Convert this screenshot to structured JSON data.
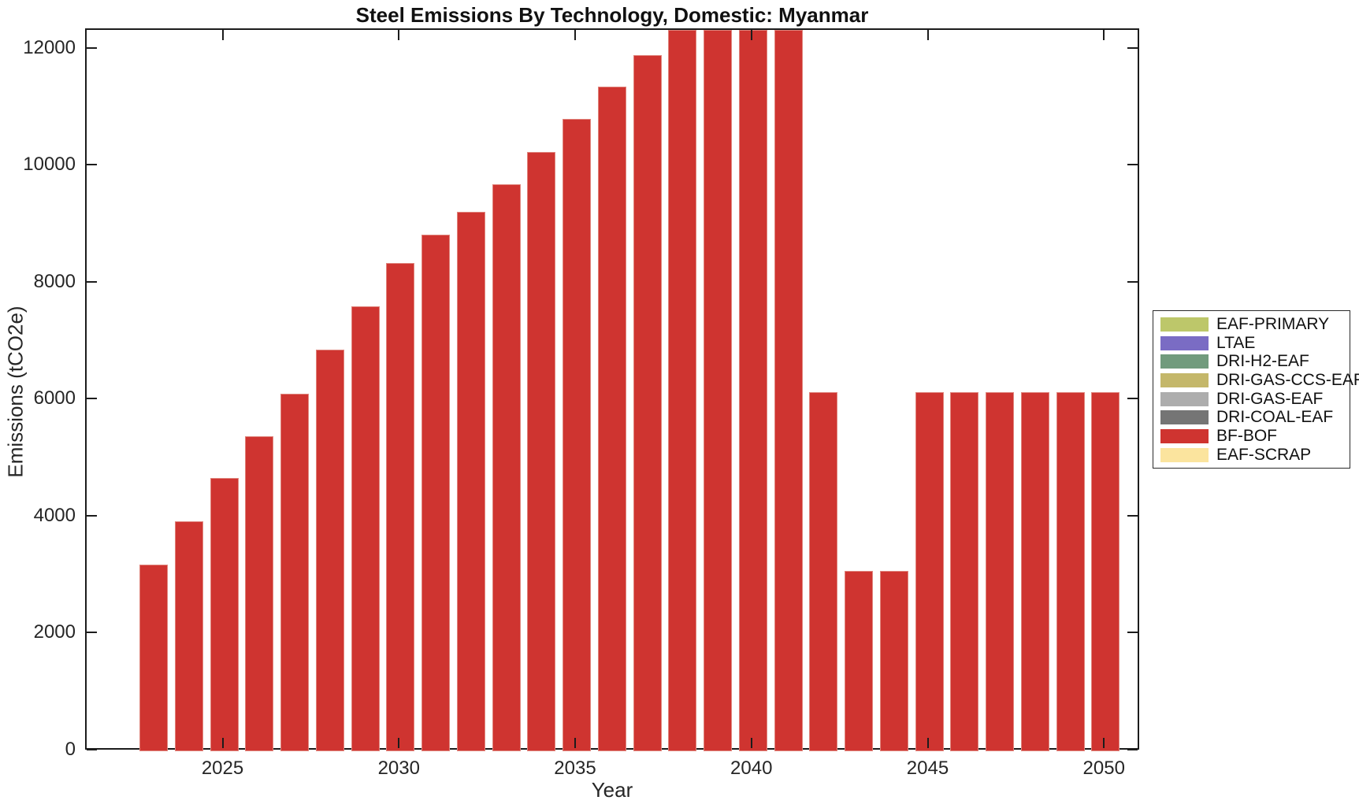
{
  "title": "Steel Emissions By Technology, Domestic: Myanmar",
  "axes": {
    "xlabel": "Year",
    "ylabel": "Emissions (tCO2e)",
    "x_tick_labels": [
      "2025",
      "2030",
      "2035",
      "2040",
      "2045",
      "2050"
    ],
    "y_tick_labels": [
      "0",
      "2000",
      "4000",
      "6000",
      "8000",
      "10000",
      "12000"
    ]
  },
  "legend": {
    "entries": [
      {
        "label": "EAF-PRIMARY",
        "color": "#bdc76a"
      },
      {
        "label": "LTAE",
        "color": "#7a6cc4"
      },
      {
        "label": "DRI-H2-EAF",
        "color": "#719b7d"
      },
      {
        "label": "DRI-GAS-CCS-EAF",
        "color": "#c4b76a"
      },
      {
        "label": "DRI-GAS-EAF",
        "color": "#adadad"
      },
      {
        "label": "DRI-COAL-EAF",
        "color": "#757575"
      },
      {
        "label": "BF-BOF",
        "color": "#cf3430"
      },
      {
        "label": "EAF-SCRAP",
        "color": "#fbe49e"
      }
    ]
  },
  "chart_data": {
    "type": "bar",
    "title": "Steel Emissions By Technology, Domestic: Myanmar",
    "xlabel": "Year",
    "ylabel": "Emissions (tCO2e)",
    "x": [
      2023,
      2024,
      2025,
      2026,
      2027,
      2028,
      2029,
      2030,
      2031,
      2032,
      2033,
      2034,
      2035,
      2036,
      2037,
      2038,
      2039,
      2040,
      2041,
      2042,
      2043,
      2044,
      2045,
      2046,
      2047,
      2048,
      2049,
      2050
    ],
    "series": [
      {
        "name": "BF-BOF",
        "color": "#cf3430",
        "values": [
          3190,
          3930,
          4670,
          5390,
          6110,
          6870,
          7610,
          8350,
          8830,
          9230,
          9690,
          10250,
          10820,
          11370,
          11910,
          12700,
          12700,
          12700,
          12700,
          6140,
          3080,
          3080,
          6140,
          6140,
          6140,
          6140,
          6140,
          6140
        ]
      }
    ],
    "clipped_years": [
      2038,
      2039,
      2040,
      2041
    ],
    "clipped_note": "Bars for 2038-2041 exceed the visible y-range and are clipped at the top of the axes",
    "xlim": [
      2021.1,
      2051.0
    ],
    "ylim": [
      0,
      12336
    ],
    "x_ticks": [
      2025,
      2030,
      2035,
      2040,
      2045,
      2050
    ],
    "y_ticks": [
      0,
      2000,
      4000,
      6000,
      8000,
      10000,
      12000
    ],
    "grid": false,
    "legend_position": "outside-right",
    "legend_entries_extra": [
      "EAF-PRIMARY",
      "LTAE",
      "DRI-H2-EAF",
      "DRI-GAS-CCS-EAF",
      "DRI-GAS-EAF",
      "DRI-COAL-EAF",
      "EAF-SCRAP"
    ]
  }
}
